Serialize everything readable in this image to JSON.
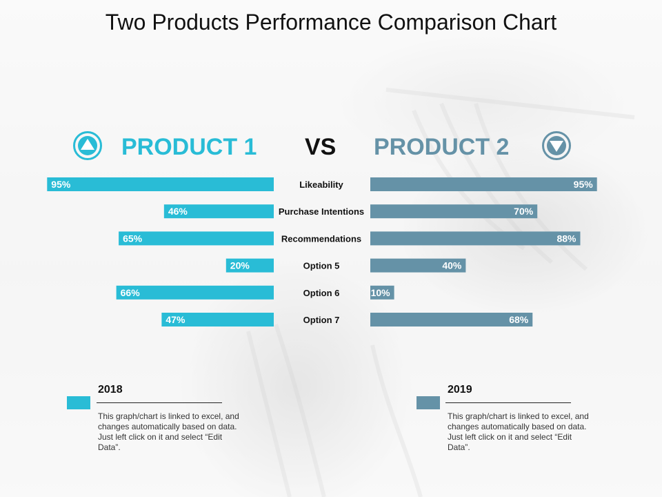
{
  "title": "Two Products Performance Comparison Chart",
  "header": {
    "product1": "PRODUCT 1",
    "vs": "VS",
    "product2": "PRODUCT 2",
    "product1_icon": "up-triangle-circle-icon",
    "product2_icon": "down-triangle-circle-icon"
  },
  "colors": {
    "product1": "#29BCD6",
    "product2": "#6592A7"
  },
  "chart_data": {
    "type": "bar",
    "orientation": "horizontal-diverging",
    "categories": [
      "Likeability",
      "Purchase Intentions",
      "Recommendations",
      "Option 5",
      "Option 6",
      "Option 7"
    ],
    "series": [
      {
        "name": "2018",
        "values": [
          95,
          46,
          65,
          20,
          66,
          47
        ],
        "labels": [
          "95%",
          "46%",
          "65%",
          "20%",
          "66%",
          "47%"
        ]
      },
      {
        "name": "2019",
        "values": [
          95,
          70,
          88,
          40,
          10,
          68
        ],
        "labels": [
          "95%",
          "70%",
          "88%",
          "40%",
          "10%",
          "68%"
        ]
      }
    ],
    "xlim": [
      0,
      100
    ],
    "grid": false
  },
  "legend": [
    {
      "year": "2018",
      "description": "This graph/chart is linked to excel, and changes automatically based on data. Just left click on it and select “Edit Data”."
    },
    {
      "year": "2019",
      "description": "This graph/chart is linked to excel, and changes automatically based on data. Just left click on it and select “Edit Data”."
    }
  ]
}
